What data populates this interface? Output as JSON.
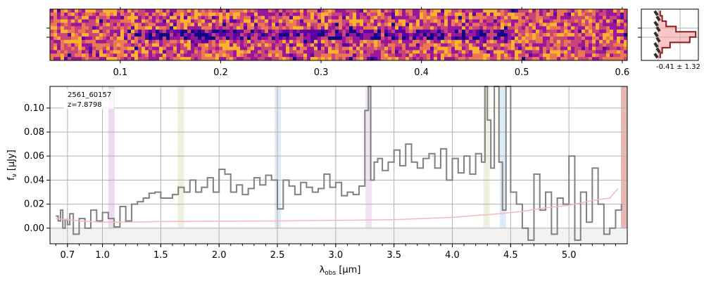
{
  "chart_data": [
    {
      "type": "heatmap",
      "panel": "2d-spectrum",
      "colormap": "plasma",
      "x_ticks": [
        "0.1",
        "0.2",
        "0.3",
        "0.4",
        "0.5",
        "0.6"
      ],
      "x_tick_positions": [
        0.1,
        0.2,
        0.3,
        0.4,
        0.5,
        0.6
      ],
      "xlim": [
        0.03,
        0.605
      ],
      "trace_row_fraction": 0.5
    },
    {
      "type": "line",
      "panel": "spatial-profile",
      "annotation": "-0.41 ± 1.32",
      "profile": [
        0.05,
        0.1,
        0.2,
        0.45,
        0.95,
        0.8,
        0.3,
        0.1,
        0.05
      ]
    },
    {
      "type": "line",
      "panel": "1d-spectrum",
      "title_lines": [
        "2561_60157",
        "z=7.8798"
      ],
      "xlabel": "λobs [μm]",
      "ylabel": "fν [μJy]",
      "x_ticks": [
        "0.7",
        "1.0",
        "1.5",
        "2.0",
        "2.5",
        "3.0",
        "3.5",
        "4.0",
        "4.5",
        "5.0"
      ],
      "x_tick_values": [
        0.7,
        1.0,
        1.5,
        2.0,
        2.5,
        3.0,
        3.5,
        4.0,
        4.5,
        5.0
      ],
      "y_ticks": [
        "0.00",
        "0.02",
        "0.04",
        "0.06",
        "0.08",
        "0.10"
      ],
      "y_tick_values": [
        0.0,
        0.02,
        0.04,
        0.06,
        0.08,
        0.1
      ],
      "xlim": [
        0.55,
        5.5
      ],
      "ylim": [
        -0.013,
        0.118
      ],
      "grid": true,
      "line_bands": [
        {
          "center": 1.074,
          "color": "#e8c8ec"
        },
        {
          "center": 1.67,
          "color": "#e4ecd0"
        },
        {
          "center": 2.5,
          "color": "#d0e4f4"
        },
        {
          "center": 3.28,
          "color": "#e8d8ec"
        },
        {
          "center": 4.29,
          "color": "#e4ecd0"
        },
        {
          "center": 4.43,
          "color": "#d0e4f4"
        },
        {
          "center": 5.47,
          "color": "#dc9898"
        }
      ],
      "series": [
        {
          "color": "#808080",
          "x": [
            0.6,
            0.62,
            0.64,
            0.66,
            0.68,
            0.7,
            0.72,
            0.75,
            0.8,
            0.85,
            0.9,
            0.95,
            1.0,
            1.05,
            1.1,
            1.15,
            1.2,
            1.25,
            1.3,
            1.35,
            1.4,
            1.45,
            1.5,
            1.55,
            1.6,
            1.65,
            1.7,
            1.75,
            1.8,
            1.85,
            1.9,
            1.95,
            2.0,
            2.05,
            2.1,
            2.15,
            2.2,
            2.25,
            2.3,
            2.35,
            2.4,
            2.45,
            2.5,
            2.55,
            2.6,
            2.65,
            2.7,
            2.75,
            2.8,
            2.85,
            2.9,
            2.95,
            3.0,
            3.05,
            3.1,
            3.15,
            3.2,
            3.25,
            3.28,
            3.3,
            3.33,
            3.36,
            3.4,
            3.45,
            3.5,
            3.55,
            3.6,
            3.65,
            3.7,
            3.75,
            3.8,
            3.85,
            3.9,
            3.95,
            4.0,
            4.05,
            4.1,
            4.15,
            4.2,
            4.25,
            4.28,
            4.3,
            4.33,
            4.36,
            4.4,
            4.43,
            4.46,
            4.5,
            4.55,
            4.6,
            4.65,
            4.7,
            4.75,
            4.8,
            4.85,
            4.9,
            4.95,
            5.0,
            5.05,
            5.1,
            5.15,
            5.2,
            5.25,
            5.3,
            5.35,
            5.4,
            5.45
          ],
          "y": [
            0.01,
            0.006,
            0.015,
            0.0,
            0.007,
            0.003,
            0.012,
            -0.005,
            0.008,
            0.0,
            0.015,
            0.006,
            0.013,
            0.008,
            0.001,
            0.018,
            0.006,
            0.02,
            0.022,
            0.025,
            0.029,
            0.03,
            0.025,
            0.025,
            0.028,
            0.034,
            0.03,
            0.04,
            0.03,
            0.034,
            0.042,
            0.03,
            0.049,
            0.045,
            0.03,
            0.036,
            0.028,
            0.033,
            0.042,
            0.036,
            0.044,
            0.04,
            0.016,
            0.04,
            0.035,
            0.028,
            0.038,
            0.034,
            0.03,
            0.033,
            0.045,
            0.034,
            0.038,
            0.027,
            0.03,
            0.028,
            0.035,
            0.098,
            0.118,
            0.04,
            0.055,
            0.058,
            0.048,
            0.055,
            0.065,
            0.052,
            0.07,
            0.055,
            0.05,
            0.058,
            0.062,
            0.05,
            0.066,
            0.04,
            0.058,
            0.046,
            0.06,
            0.045,
            0.062,
            0.055,
            0.118,
            0.09,
            0.05,
            0.118,
            0.055,
            0.015,
            0.118,
            0.03,
            0.02,
            0.0,
            -0.01,
            0.045,
            0.015,
            0.03,
            -0.005,
            0.025,
            0.02,
            0.06,
            -0.01,
            0.03,
            0.005,
            0.05,
            0.02,
            -0.005,
            0.0,
            0.015,
            0.02
          ]
        },
        {
          "color": "#f4b8b8",
          "x": [
            0.6,
            0.8,
            1.0,
            1.2,
            1.5,
            2.0,
            2.5,
            3.0,
            3.5,
            4.0,
            4.4,
            4.6,
            4.8,
            5.0,
            5.2,
            5.35,
            5.42
          ],
          "y": [
            0.008,
            0.006,
            0.005,
            0.005,
            0.0055,
            0.0058,
            0.006,
            0.0065,
            0.007,
            0.009,
            0.012,
            0.014,
            0.017,
            0.019,
            0.023,
            0.025,
            0.033
          ]
        }
      ]
    }
  ]
}
